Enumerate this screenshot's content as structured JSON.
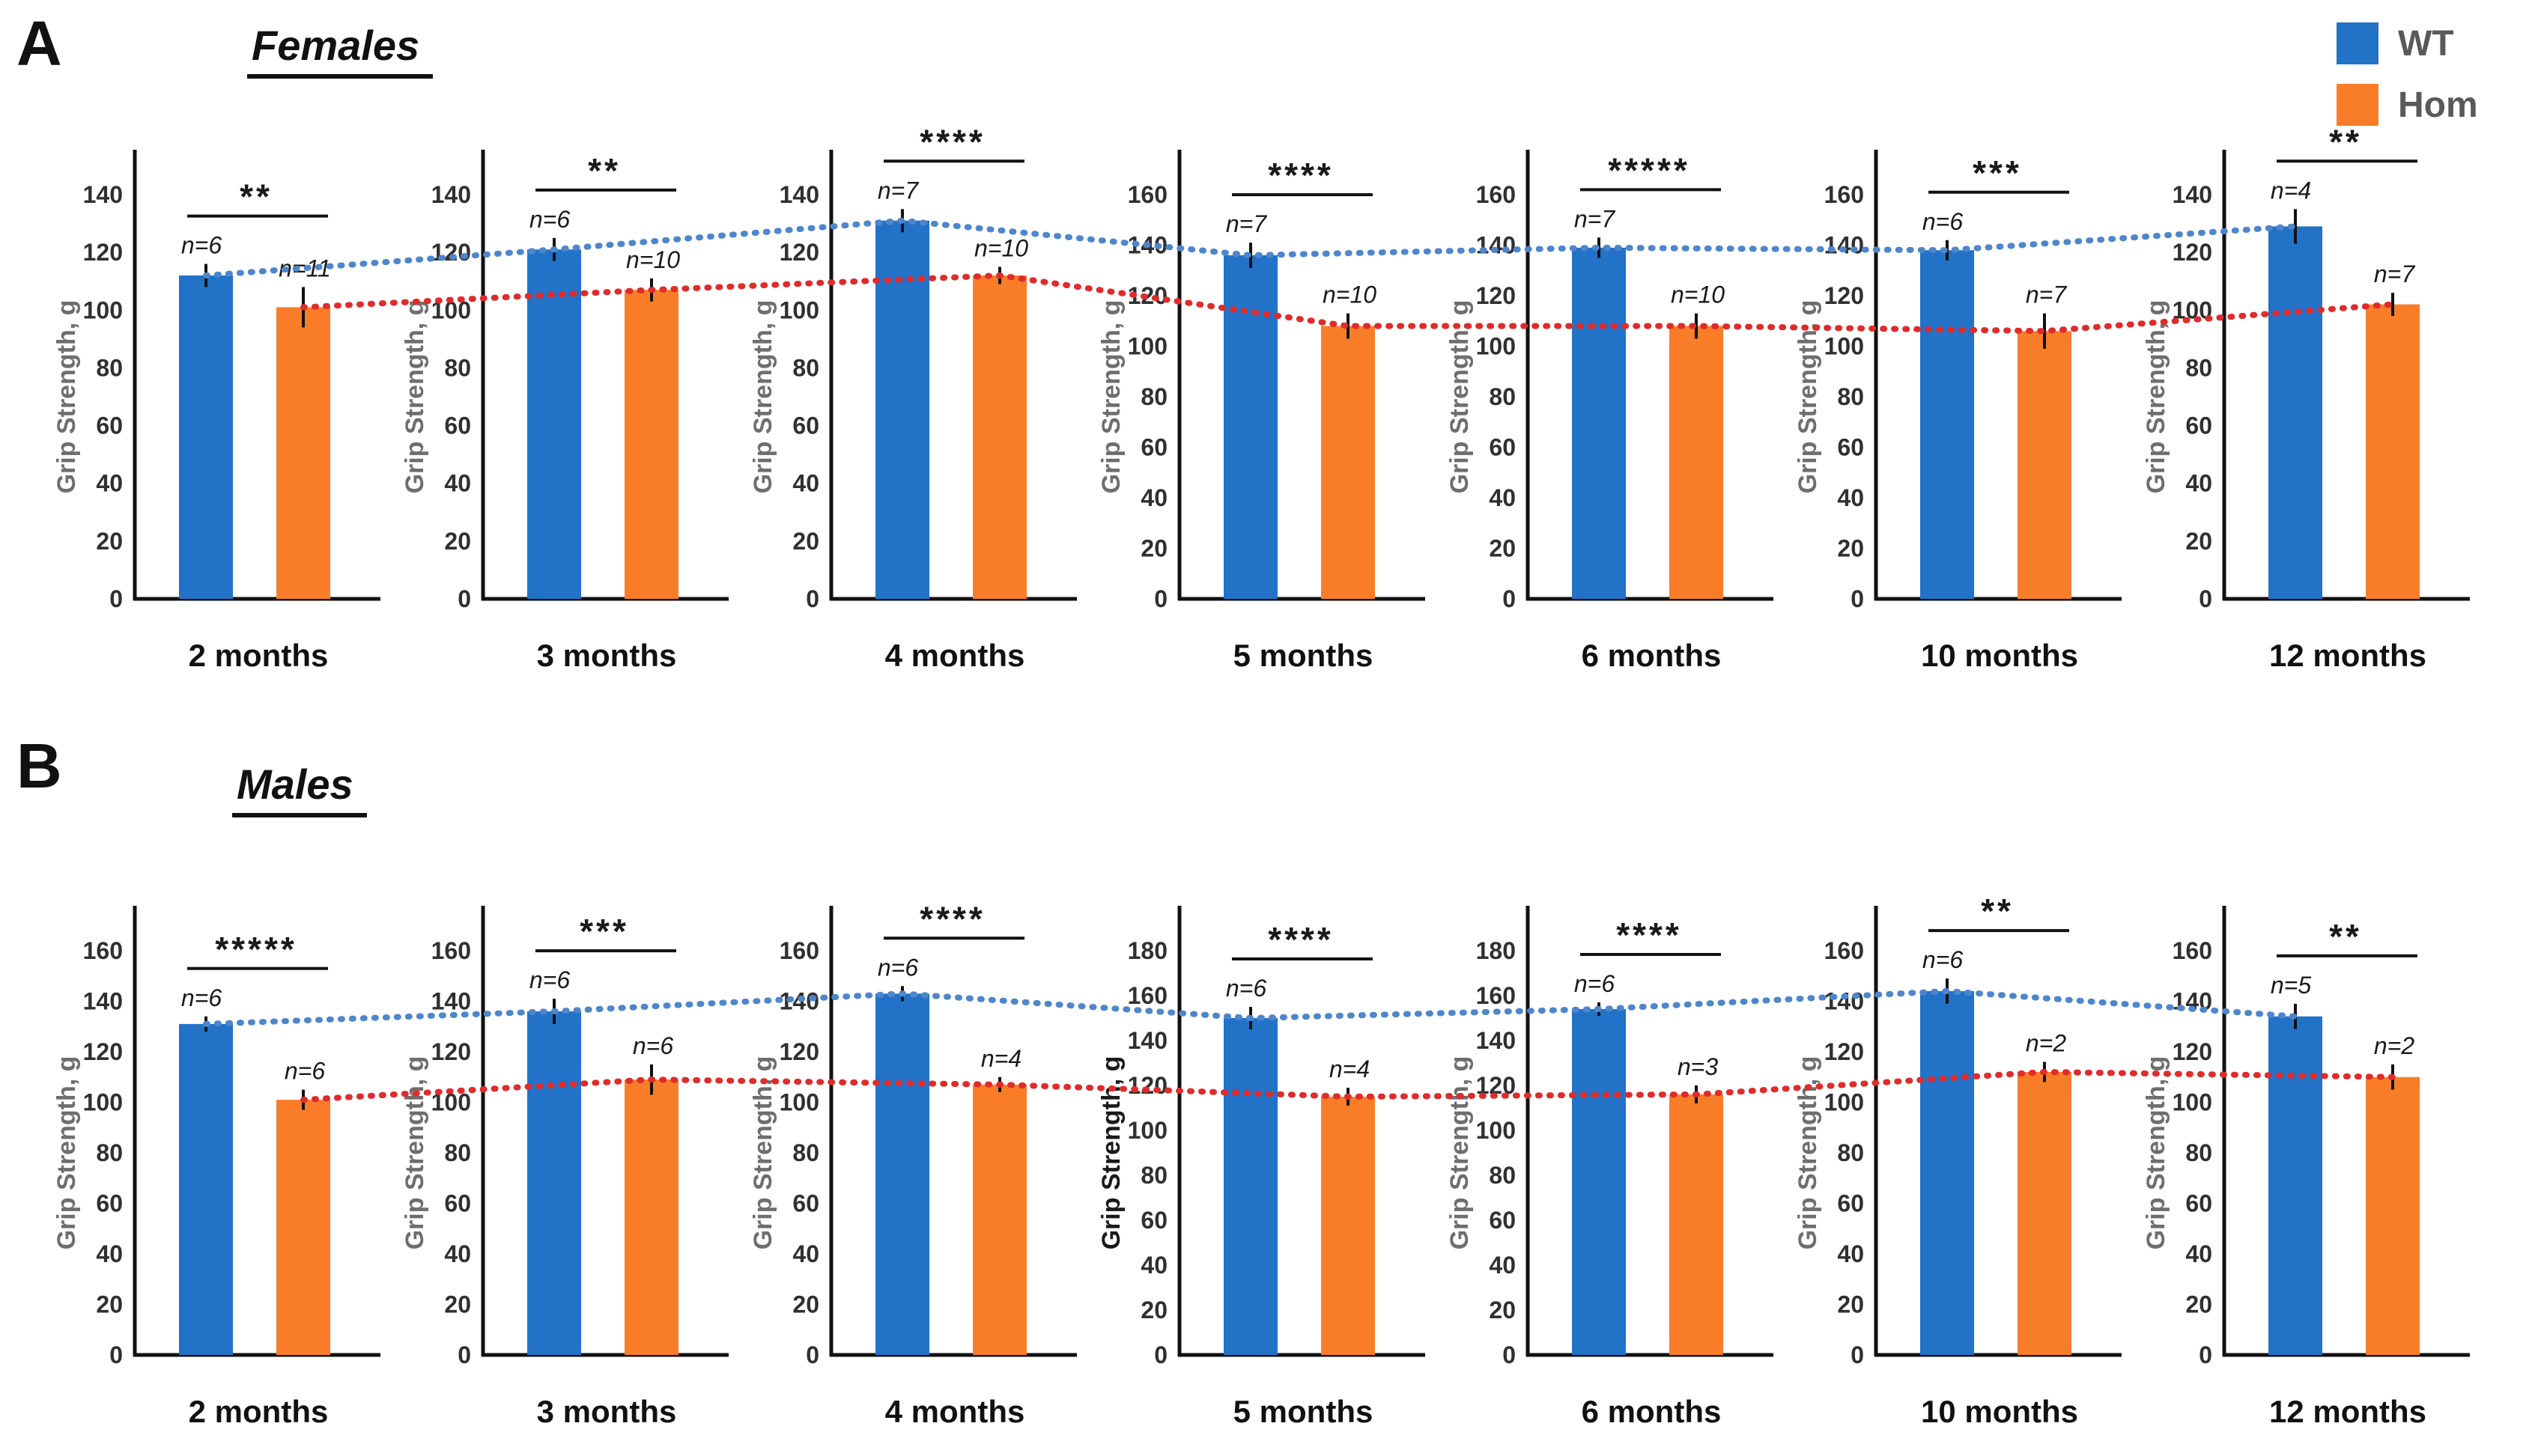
{
  "figure": {
    "panels": [
      {
        "label": "A",
        "title": "Females"
      },
      {
        "label": "B",
        "title": "Males"
      }
    ],
    "legend": [
      {
        "label": "WT",
        "color": "#2272C8"
      },
      {
        "label": "Hom",
        "color": "#F97D28"
      }
    ],
    "colors": {
      "bar_wt": "#2272C8",
      "bar_hom": "#F97D28",
      "trend_wt": "#4E86CC",
      "trend_hom": "#E02B2B",
      "axis_text": "#303030",
      "ylabel_gray": "#6e6e6e",
      "ylabel_dark": "#1a1a1a"
    }
  },
  "chart_data": [
    {
      "type": "bar",
      "panel": "A",
      "title": "Females",
      "ylabel": "Grip Strength, g",
      "legend_position": "top-right",
      "grid": false,
      "categories": [
        "2 months",
        "3 months",
        "4 months",
        "5 months",
        "6 months",
        "10 months",
        "12 months"
      ],
      "series": [
        {
          "name": "WT",
          "values": [
            112,
            121,
            131,
            136,
            139,
            138,
            129
          ]
        },
        {
          "name": "Hom",
          "values": [
            101,
            107,
            112,
            108,
            108,
            106,
            102
          ]
        }
      ],
      "charts": [
        {
          "month": "2 months",
          "ymax": 140,
          "wt": {
            "n": "n=6",
            "value": 112,
            "err": 4
          },
          "hom": {
            "n": "n=11",
            "value": 101,
            "err": 7
          },
          "sig": "**",
          "ylabel_dark": false
        },
        {
          "month": "3 months",
          "ymax": 140,
          "wt": {
            "n": "n=6",
            "value": 121,
            "err": 4
          },
          "hom": {
            "n": "n=10",
            "value": 107,
            "err": 4
          },
          "sig": "**",
          "ylabel_dark": false
        },
        {
          "month": "4 months",
          "ymax": 140,
          "wt": {
            "n": "n=7",
            "value": 131,
            "err": 4
          },
          "hom": {
            "n": "n=10",
            "value": 112,
            "err": 3
          },
          "sig": "****",
          "ylabel_dark": false
        },
        {
          "month": "5 months",
          "ymax": 160,
          "wt": {
            "n": "n=7",
            "value": 136,
            "err": 5
          },
          "hom": {
            "n": "n=10",
            "value": 108,
            "err": 5
          },
          "sig": "****",
          "ylabel_dark": false
        },
        {
          "month": "6 months",
          "ymax": 160,
          "wt": {
            "n": "n=7",
            "value": 139,
            "err": 4
          },
          "hom": {
            "n": "n=10",
            "value": 108,
            "err": 5
          },
          "sig": "*****",
          "ylabel_dark": false
        },
        {
          "month": "10 months",
          "ymax": 160,
          "wt": {
            "n": "n=6",
            "value": 138,
            "err": 4
          },
          "hom": {
            "n": "n=7",
            "value": 106,
            "err": 7
          },
          "sig": "***",
          "ylabel_dark": false
        },
        {
          "month": "12 months",
          "ymax": 140,
          "wt": {
            "n": "n=4",
            "value": 129,
            "err": 6
          },
          "hom": {
            "n": "n=7",
            "value": 102,
            "err": 4
          },
          "sig": "**",
          "ylabel_dark": false
        }
      ]
    },
    {
      "type": "bar",
      "panel": "B",
      "title": "Males",
      "ylabel": "Grip Strength, g",
      "legend_position": "top-right",
      "grid": false,
      "categories": [
        "2 months",
        "3 months",
        "4 months",
        "5 months",
        "6 months",
        "10 months",
        "12 months"
      ],
      "series": [
        {
          "name": "WT",
          "values": [
            131,
            136,
            143,
            150,
            154,
            144,
            134
          ]
        },
        {
          "name": "Hom",
          "values": [
            101,
            109,
            107,
            115,
            116,
            112,
            110
          ]
        }
      ],
      "charts": [
        {
          "month": "2 months",
          "ymax": 160,
          "wt": {
            "n": "n=6",
            "value": 131,
            "err": 3
          },
          "hom": {
            "n": "n=6",
            "value": 101,
            "err": 4
          },
          "sig": "*****",
          "ylabel_dark": false
        },
        {
          "month": "3 months",
          "ymax": 160,
          "wt": {
            "n": "n=6",
            "value": 136,
            "err": 5
          },
          "hom": {
            "n": "n=6",
            "value": 109,
            "err": 6
          },
          "sig": "***",
          "ylabel_dark": false
        },
        {
          "month": "4 months",
          "ymax": 160,
          "wt": {
            "n": "n=6",
            "value": 143,
            "err": 3
          },
          "hom": {
            "n": "n=4",
            "value": 107,
            "err": 3
          },
          "sig": "****",
          "ylabel_dark": false
        },
        {
          "month": "5 months",
          "ymax": 180,
          "wt": {
            "n": "n=6",
            "value": 150,
            "err": 5
          },
          "hom": {
            "n": "n=4",
            "value": 115,
            "err": 4
          },
          "sig": "****",
          "ylabel_dark": true
        },
        {
          "month": "6 months",
          "ymax": 180,
          "wt": {
            "n": "n=6",
            "value": 154,
            "err": 3
          },
          "hom": {
            "n": "n=3",
            "value": 116,
            "err": 4
          },
          "sig": "****",
          "ylabel_dark": false
        },
        {
          "month": "10 months",
          "ymax": 160,
          "wt": {
            "n": "n=6",
            "value": 144,
            "err": 5
          },
          "hom": {
            "n": "n=2",
            "value": 112,
            "err": 4
          },
          "sig": "**",
          "ylabel_dark": false
        },
        {
          "month": "12 months",
          "ymax": 160,
          "wt": {
            "n": "n=5",
            "value": 134,
            "err": 5
          },
          "hom": {
            "n": "n=2",
            "value": 110,
            "err": 5
          },
          "sig": "**",
          "ylabel_dark": false
        }
      ]
    }
  ]
}
